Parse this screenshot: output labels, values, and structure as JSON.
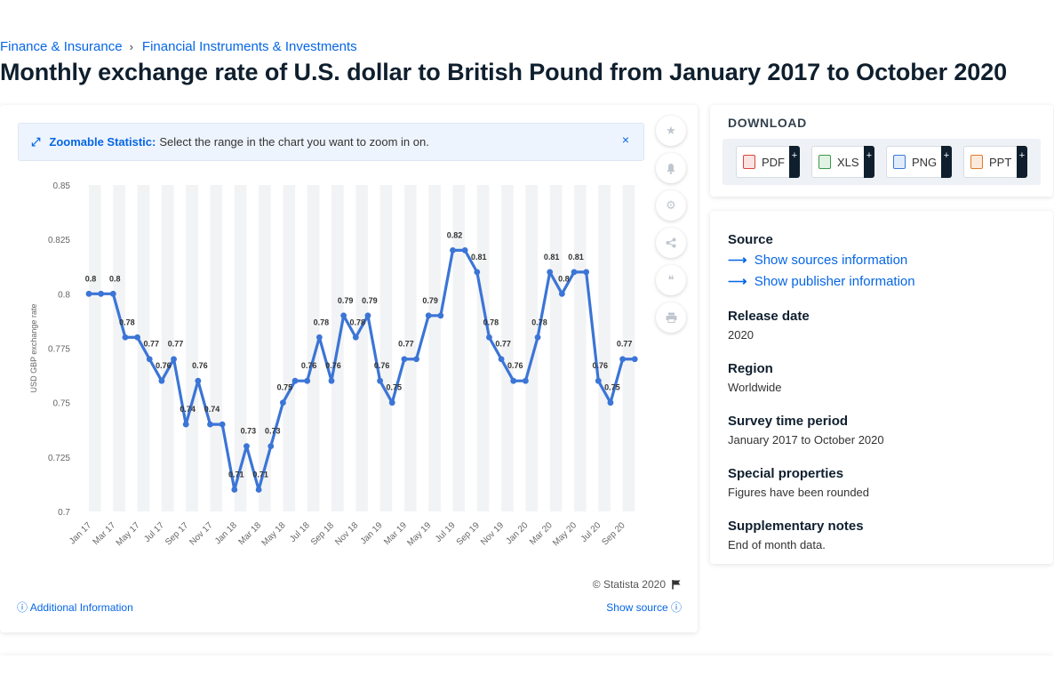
{
  "breadcrumb": {
    "item1": "Finance & Insurance",
    "separator": "›",
    "item2": "Financial Instruments & Investments"
  },
  "page_title": "Monthly exchange rate of U.S. dollar to British Pound from January 2017 to October 2020",
  "zoom_banner": {
    "icon": "expand-arrows-icon",
    "title": "Zoomable Statistic:",
    "text": "Select the range in the chart you want to zoom in on.",
    "close": "×"
  },
  "toolbar": {
    "icons": [
      "star-icon",
      "bell-icon",
      "gear-icon",
      "share-icon",
      "quote-icon",
      "print-icon"
    ]
  },
  "chart_footer": {
    "copyright": "© Statista 2020",
    "additional_info": "Additional Information",
    "show_source": "Show source"
  },
  "download": {
    "title": "DOWNLOAD",
    "buttons": [
      {
        "label": "PDF",
        "plus": "+",
        "color": "#d9453b"
      },
      {
        "label": "XLS",
        "plus": "+",
        "color": "#3a9a4a"
      },
      {
        "label": "PNG",
        "plus": "+",
        "color": "#3c7bd6"
      },
      {
        "label": "PPT",
        "plus": "+",
        "color": "#e07b2e"
      }
    ]
  },
  "info": {
    "source_heading": "Source",
    "sources_link": "Show sources information",
    "publisher_link": "Show publisher information",
    "release_heading": "Release date",
    "release_value": "2020",
    "region_heading": "Region",
    "region_value": "Worldwide",
    "survey_heading": "Survey time period",
    "survey_value": "January 2017 to October 2020",
    "special_heading": "Special properties",
    "special_value": "Figures have been rounded",
    "supp_heading": "Supplementary notes",
    "supp_value": "End of month data."
  },
  "colors": {
    "line": "#3b75d6",
    "accent": "#0666e5",
    "band": "#f2f3f5"
  },
  "chart_data": {
    "type": "line",
    "ylabel": "USD GBP exchange rate",
    "ylim": [
      0.7,
      0.85
    ],
    "yticks": [
      "0.85",
      "0.825",
      "0.8",
      "0.775",
      "0.75",
      "0.725",
      "0.7"
    ],
    "grid": false,
    "x": [
      "Jan 17",
      "Feb 17",
      "Mar 17",
      "Apr 17",
      "May 17",
      "Jun 17",
      "Jul 17",
      "Aug 17",
      "Sep 17",
      "Oct 17",
      "Nov 17",
      "Dec 17",
      "Jan 18",
      "Feb 18",
      "Mar 18",
      "Apr 18",
      "May 18",
      "Jun 18",
      "Jul 18",
      "Aug 18",
      "Sep 18",
      "Oct 18",
      "Nov 18",
      "Dec 18",
      "Jan 19",
      "Feb 19",
      "Mar 19",
      "Apr 19",
      "May 19",
      "Jun 19",
      "Jul 19",
      "Aug 19",
      "Sep 19",
      "Oct 19",
      "Nov 19",
      "Dec 19",
      "Jan 20",
      "Feb 20",
      "Mar 20",
      "Apr 20",
      "May 20",
      "Jun 20",
      "Jul 20",
      "Aug 20",
      "Sep 20",
      "Oct 20"
    ],
    "x_tick_labels": [
      "Jan 17",
      "Mar 17",
      "May 17",
      "Jul 17",
      "Sep 17",
      "Nov 17",
      "Jan 18",
      "Mar 18",
      "May 18",
      "Jul 18",
      "Sep 18",
      "Nov 18",
      "Jan 19",
      "Mar 19",
      "May 19",
      "Jul 19",
      "Sep 19",
      "Nov 19",
      "Jan 20",
      "Mar 20",
      "May 20",
      "Jul 20",
      "Sep 20"
    ],
    "values": [
      0.8,
      0.8,
      0.8,
      0.78,
      0.78,
      0.77,
      0.76,
      0.77,
      0.74,
      0.76,
      0.74,
      0.74,
      0.71,
      0.73,
      0.71,
      0.73,
      0.75,
      0.76,
      0.76,
      0.78,
      0.76,
      0.79,
      0.78,
      0.79,
      0.76,
      0.75,
      0.77,
      0.77,
      0.79,
      0.79,
      0.82,
      0.82,
      0.81,
      0.78,
      0.77,
      0.76,
      0.76,
      0.78,
      0.81,
      0.8,
      0.81,
      0.81,
      0.76,
      0.75,
      0.77,
      0.77
    ],
    "data_labels": [
      "0.8",
      "",
      "0.8",
      "0.78",
      "",
      "0.77",
      "0.76",
      "0.77",
      "0.74",
      "0.76",
      "0.74",
      "",
      "0.71",
      "0.73",
      "0.71",
      "0.73",
      "0.75",
      "",
      "0.76",
      "0.78",
      "0.76",
      "0.79",
      "0.78",
      "0.79",
      "0.76",
      "0.75",
      "0.77",
      "",
      "0.79",
      "",
      "0.82",
      "",
      "0.81",
      "0.78",
      "0.77",
      "0.76",
      "",
      "0.78",
      "0.81",
      "0.8",
      "0.81",
      "",
      "0.76",
      "0.75",
      "0.77",
      ""
    ]
  }
}
